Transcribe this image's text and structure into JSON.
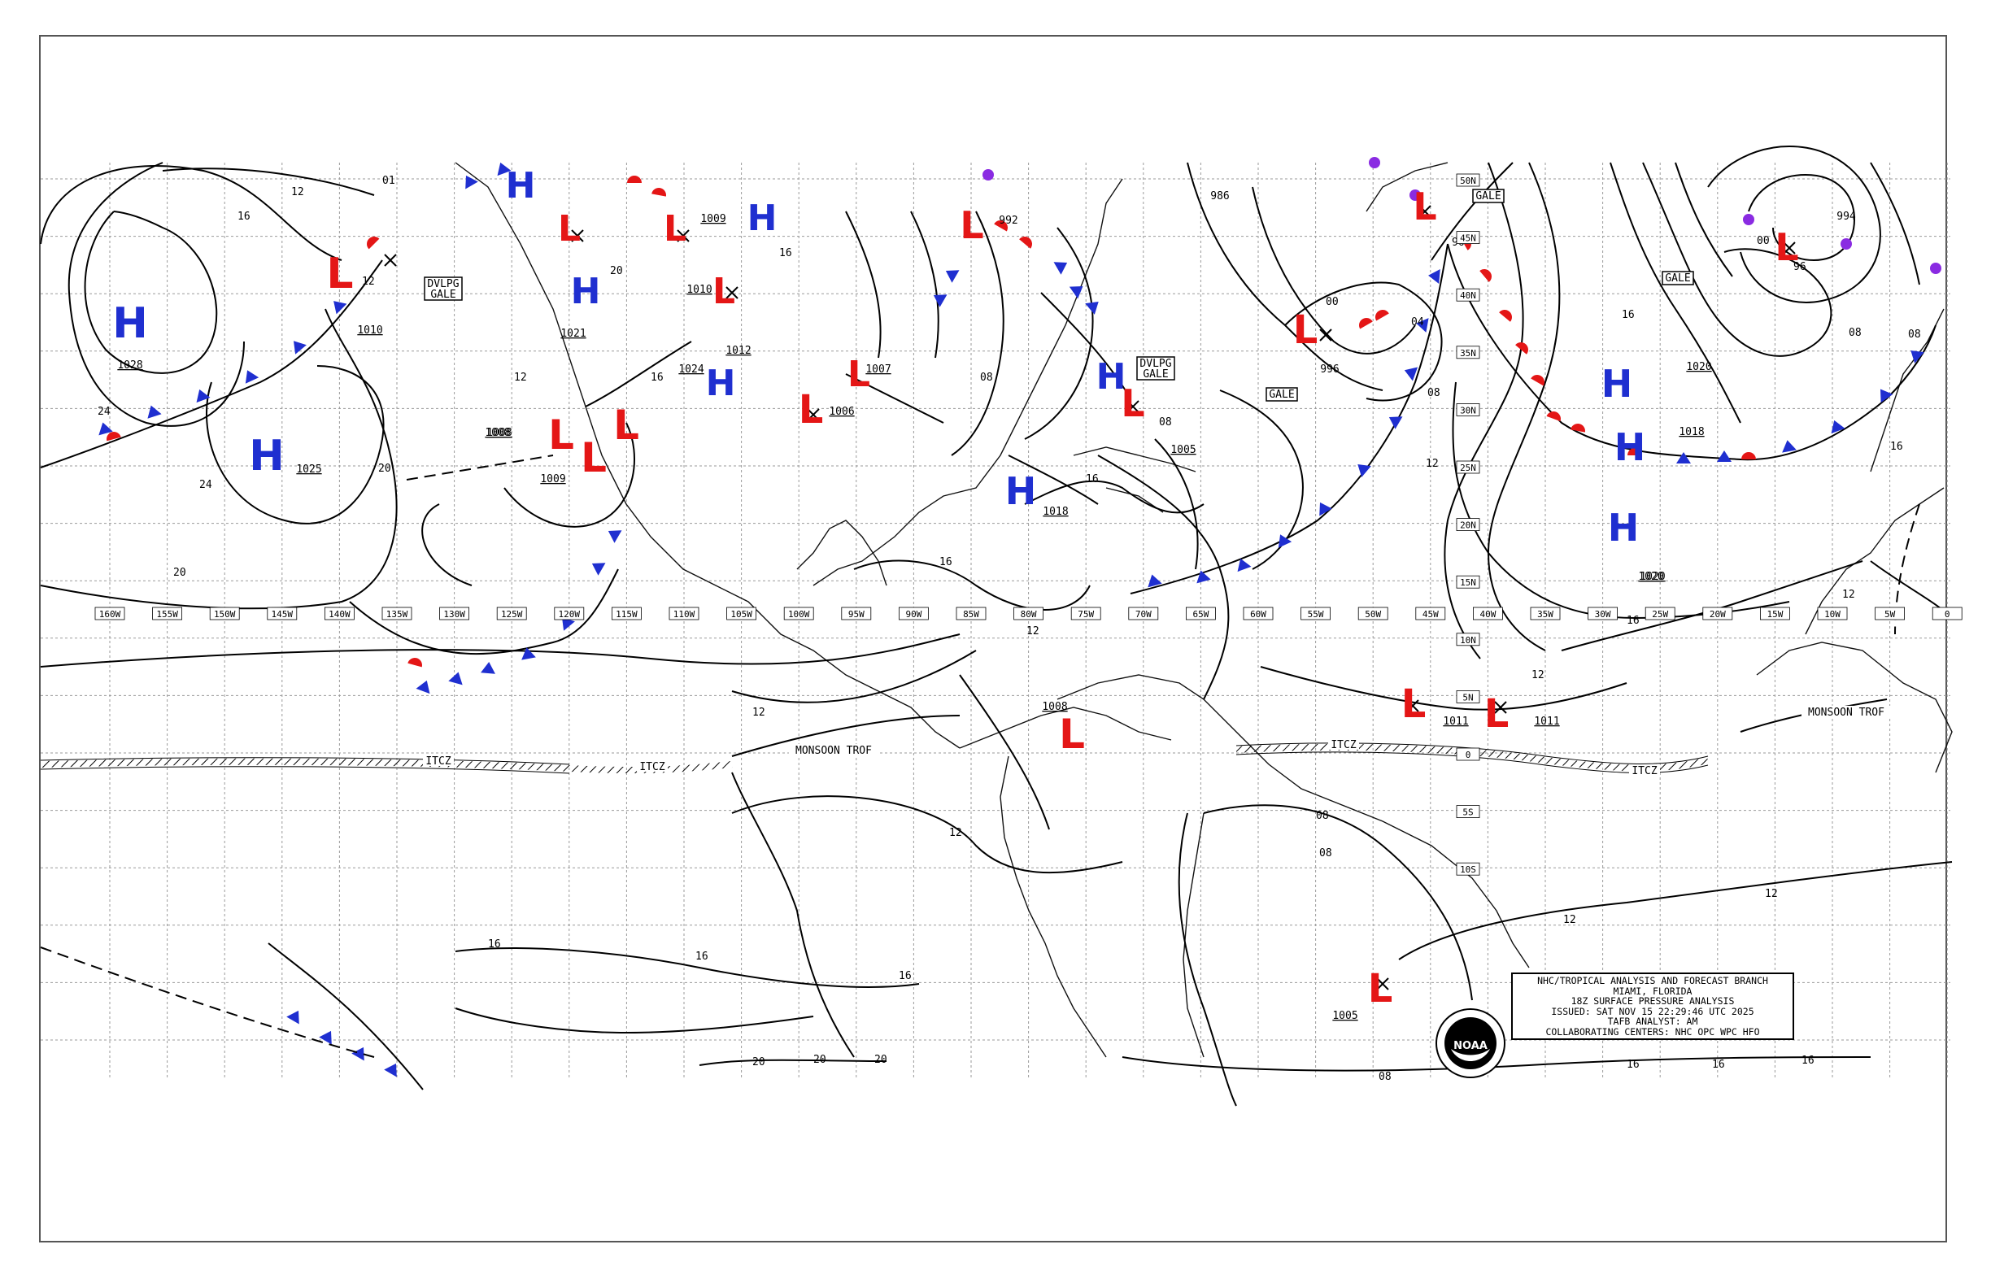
{
  "map": {
    "longitude_labels": [
      "160W",
      "155W",
      "150W",
      "145W",
      "140W",
      "135W",
      "130W",
      "125W",
      "120W",
      "115W",
      "110W",
      "105W",
      "100W",
      "95W",
      "90W",
      "85W",
      "80W",
      "75W",
      "70W",
      "65W",
      "60W",
      "55W",
      "50W",
      "45W",
      "40W",
      "35W",
      "30W",
      "25W",
      "20W",
      "15W",
      "10W",
      "5W",
      "0"
    ],
    "latitude_labels": [
      "50N",
      "45N",
      "40N",
      "35N",
      "30N",
      "25N",
      "20N",
      "15N",
      "10N",
      "5N",
      "0",
      "5S",
      "10S"
    ],
    "high_centers": [
      {
        "label": "H",
        "pressure": "1028"
      },
      {
        "label": "H",
        "pressure": "1025"
      },
      {
        "label": "H",
        "pressure": "1024"
      },
      {
        "label": "H",
        "pressure": "1018"
      },
      {
        "label": "H",
        "pressure": "1018"
      },
      {
        "label": "H",
        "pressure": "1020"
      }
    ],
    "low_centers": [
      {
        "label": "L",
        "pressure": "1010"
      },
      {
        "label": "L",
        "pressure": "1009"
      },
      {
        "label": "L",
        "pressure": "1010"
      },
      {
        "label": "L",
        "pressure": "1008"
      },
      {
        "label": "L",
        "pressure": "1006"
      },
      {
        "label": "L",
        "pressure": "1008"
      },
      {
        "label": "L",
        "pressure": "996"
      },
      {
        "label": "L",
        "pressure": "1011"
      },
      {
        "label": "L",
        "pressure": "1011"
      },
      {
        "label": "L",
        "pressure": "1005"
      },
      {
        "label": "L",
        "pressure": "992"
      },
      {
        "label": "L",
        "pressure": "994"
      }
    ],
    "pressure_labels": [
      "1010",
      "1028",
      "1025",
      "1008",
      "1009",
      "1021",
      "1024",
      "1012",
      "1007",
      "1005",
      "1018",
      "1020",
      "986",
      "1008",
      "1011",
      "1011",
      "1005",
      "1010",
      "1009",
      "1009"
    ],
    "isobar_labels": [
      "12",
      "16",
      "20",
      "24",
      "01",
      "08",
      "04",
      "00",
      "96",
      "12",
      "16",
      "20"
    ],
    "gale_labels": [
      "DVLPG GALE",
      "DVLPG GALE",
      "GALE",
      "GALE",
      "GALE"
    ],
    "feature_labels": [
      "ITCZ",
      "ITCZ",
      "MONSOON TROF",
      "ITCZ",
      "MONSOON TROF"
    ],
    "colors": {
      "high": "#1f2fd0",
      "low": "#e41616",
      "cold_front": "#1f2fd0",
      "warm_front": "#e41616",
      "occluded_front": "#8a2be2"
    }
  },
  "infobox": {
    "line1": "NHC/TROPICAL ANALYSIS AND FORECAST BRANCH",
    "line2": "MIAMI, FLORIDA",
    "line3": "18Z SURFACE PRESSURE ANALYSIS",
    "line4": "ISSUED: SAT NOV 15 22:29:46 UTC 2025",
    "line5": "TAFB ANALYST: AM",
    "line6": "COLLABORATING CENTERS: NHC OPC WPC HFO"
  },
  "logo": {
    "text": "NOAA"
  }
}
